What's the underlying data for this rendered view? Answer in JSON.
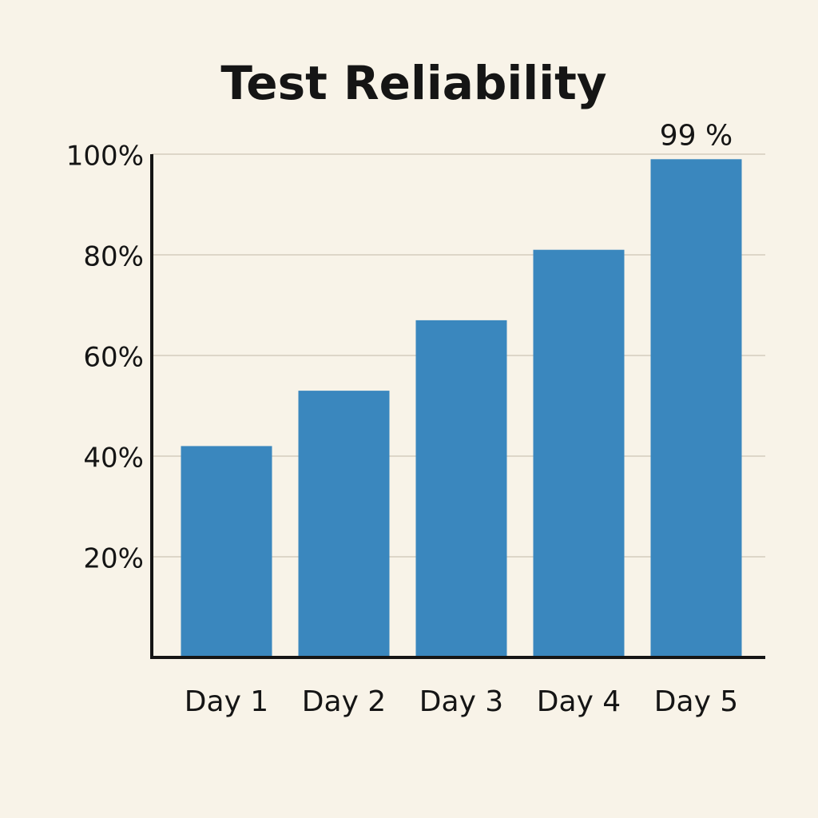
{
  "chart_data": {
    "type": "bar",
    "title": "Test Reliability",
    "categories": [
      "Day 1",
      "Day 2",
      "Day 3",
      "Day 4",
      "Day 5"
    ],
    "values": [
      42,
      53,
      67,
      81,
      99
    ],
    "value_labels": [
      null,
      null,
      null,
      null,
      "99 %"
    ],
    "color": "#3a87be",
    "ylim": [
      0,
      100
    ],
    "yticks": [
      {
        "value": 20,
        "label": "20%"
      },
      {
        "value": 40,
        "label": "40%"
      },
      {
        "value": 60,
        "label": "60%"
      },
      {
        "value": 80,
        "label": "80%"
      },
      {
        "value": 100,
        "label": "100%"
      }
    ],
    "grid": true
  }
}
